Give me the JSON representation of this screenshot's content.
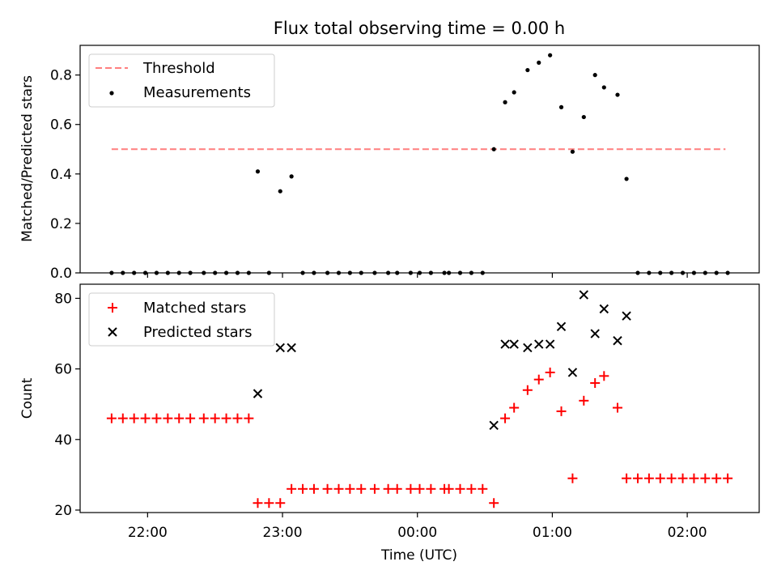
{
  "figure": {
    "title": "Flux total observing time = 0.00 h",
    "xlabel": "Time (UTC)",
    "xticks": [
      {
        "t": -120,
        "label": "22:00"
      },
      {
        "t": -60,
        "label": "23:00"
      },
      {
        "t": 0,
        "label": "00:00"
      },
      {
        "t": 60,
        "label": "01:00"
      },
      {
        "t": 120,
        "label": "02:00"
      }
    ]
  },
  "chart_data": [
    {
      "type": "scatter",
      "ylabel": "Matched/Predicted stars",
      "xlim": [
        -150,
        152
      ],
      "ylim": [
        0,
        0.92
      ],
      "yticks": [
        0.0,
        0.2,
        0.4,
        0.6,
        0.8
      ],
      "tick_decimals": 1,
      "legend": {
        "placement": "top-left"
      },
      "series": [
        {
          "name": "Threshold",
          "kind": "dashed-line",
          "color": "#ff7f7f",
          "points": [
            [
              -136,
              0.5
            ],
            [
              137,
              0.5
            ]
          ]
        },
        {
          "name": "Measurements",
          "kind": "dot",
          "color": "#000000",
          "points": [
            [
              -136,
              0
            ],
            [
              -131,
              0
            ],
            [
              -126,
              0
            ],
            [
              -121,
              0
            ],
            [
              -116,
              0
            ],
            [
              -111,
              0
            ],
            [
              -106,
              0
            ],
            [
              -101,
              0
            ],
            [
              -95,
              0
            ],
            [
              -90,
              0
            ],
            [
              -85,
              0
            ],
            [
              -80,
              0
            ],
            [
              -75,
              0
            ],
            [
              -71,
              0.41
            ],
            [
              -66,
              0
            ],
            [
              -61,
              0.33
            ],
            [
              -56,
              0.39
            ],
            [
              -51,
              0
            ],
            [
              -46,
              0
            ],
            [
              -40,
              0
            ],
            [
              -35,
              0
            ],
            [
              -30,
              0
            ],
            [
              -25,
              0
            ],
            [
              -19,
              0
            ],
            [
              -13,
              0
            ],
            [
              -9,
              0
            ],
            [
              -3,
              0
            ],
            [
              1,
              0
            ],
            [
              6,
              0
            ],
            [
              12,
              0
            ],
            [
              14,
              0
            ],
            [
              19,
              0
            ],
            [
              24,
              0
            ],
            [
              29,
              0
            ],
            [
              34,
              0.5
            ],
            [
              39,
              0.69
            ],
            [
              43,
              0.73
            ],
            [
              49,
              0.82
            ],
            [
              54,
              0.85
            ],
            [
              59,
              0.88
            ],
            [
              64,
              0.67
            ],
            [
              69,
              0.49
            ],
            [
              74,
              0.63
            ],
            [
              79,
              0.8
            ],
            [
              83,
              0.75
            ],
            [
              89,
              0.72
            ],
            [
              93,
              0.38
            ],
            [
              98,
              0
            ],
            [
              103,
              0
            ],
            [
              108,
              0
            ],
            [
              113,
              0
            ],
            [
              118,
              0
            ],
            [
              123,
              0
            ],
            [
              128,
              0
            ],
            [
              133,
              0
            ],
            [
              138,
              0
            ]
          ]
        }
      ]
    },
    {
      "type": "scatter",
      "ylabel": "Count",
      "xlim": [
        -150,
        152
      ],
      "ylim": [
        19.3,
        84
      ],
      "yticks": [
        20,
        40,
        60,
        80
      ],
      "tick_decimals": 0,
      "legend": {
        "placement": "top-left"
      },
      "series": [
        {
          "name": "Matched stars",
          "kind": "plus",
          "color": "#ff0000",
          "points": [
            [
              -136,
              46
            ],
            [
              -131,
              46
            ],
            [
              -126,
              46
            ],
            [
              -121,
              46
            ],
            [
              -116,
              46
            ],
            [
              -111,
              46
            ],
            [
              -106,
              46
            ],
            [
              -101,
              46
            ],
            [
              -95,
              46
            ],
            [
              -90,
              46
            ],
            [
              -85,
              46
            ],
            [
              -80,
              46
            ],
            [
              -75,
              46
            ],
            [
              -71,
              22
            ],
            [
              -66,
              22
            ],
            [
              -61,
              22
            ],
            [
              -56,
              26
            ],
            [
              -51,
              26
            ],
            [
              -46,
              26
            ],
            [
              -40,
              26
            ],
            [
              -35,
              26
            ],
            [
              -30,
              26
            ],
            [
              -25,
              26
            ],
            [
              -19,
              26
            ],
            [
              -13,
              26
            ],
            [
              -9,
              26
            ],
            [
              -3,
              26
            ],
            [
              1,
              26
            ],
            [
              6,
              26
            ],
            [
              12,
              26
            ],
            [
              14,
              26
            ],
            [
              19,
              26
            ],
            [
              24,
              26
            ],
            [
              29,
              26
            ],
            [
              34,
              22
            ],
            [
              39,
              46
            ],
            [
              43,
              49
            ],
            [
              49,
              54
            ],
            [
              54,
              57
            ],
            [
              59,
              59
            ],
            [
              64,
              48
            ],
            [
              69,
              29
            ],
            [
              74,
              51
            ],
            [
              79,
              56
            ],
            [
              83,
              58
            ],
            [
              89,
              49
            ],
            [
              93,
              29
            ],
            [
              98,
              29
            ],
            [
              103,
              29
            ],
            [
              108,
              29
            ],
            [
              113,
              29
            ],
            [
              118,
              29
            ],
            [
              123,
              29
            ],
            [
              128,
              29
            ],
            [
              133,
              29
            ],
            [
              138,
              29
            ]
          ]
        },
        {
          "name": "Predicted stars",
          "kind": "x",
          "color": "#000000",
          "points": [
            [
              -71,
              53
            ],
            [
              -61,
              66
            ],
            [
              -56,
              66
            ],
            [
              34,
              44
            ],
            [
              39,
              67
            ],
            [
              43,
              67
            ],
            [
              49,
              66
            ],
            [
              54,
              67
            ],
            [
              59,
              67
            ],
            [
              64,
              72
            ],
            [
              69,
              59
            ],
            [
              74,
              81
            ],
            [
              79,
              70
            ],
            [
              83,
              77
            ],
            [
              89,
              68
            ],
            [
              93,
              75
            ]
          ]
        }
      ]
    }
  ]
}
